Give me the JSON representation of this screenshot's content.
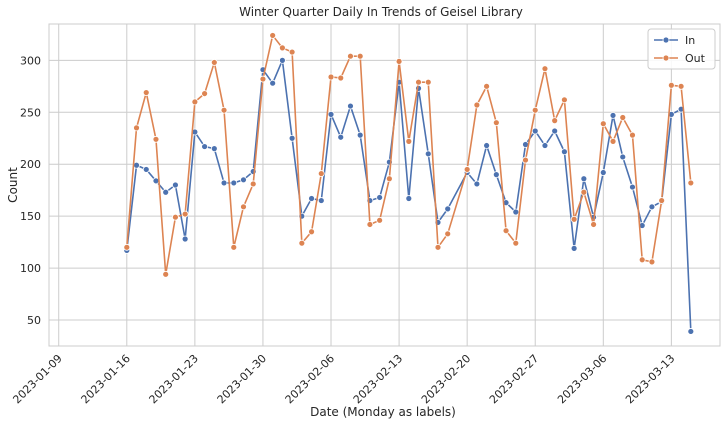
{
  "chart_data": {
    "type": "line",
    "title": "Winter Quarter Daily In Trends of Geisel Library",
    "xlabel": "Date (Monday as labels)",
    "ylabel": "Count",
    "x_tick_labels": [
      "2023-01-09",
      "2023-01-16",
      "2023-01-23",
      "2023-01-30",
      "2023-02-06",
      "2023-02-13",
      "2023-02-20",
      "2023-02-27",
      "2023-03-06",
      "2023-03-13"
    ],
    "x_start": "2023-01-08",
    "x_end": "2023-03-18",
    "ylim": [
      25,
      335
    ],
    "y_ticks": [
      50,
      100,
      150,
      200,
      250,
      300
    ],
    "grid": true,
    "legend_position": "top-right",
    "series": [
      {
        "name": "In",
        "color": "#4c72b0",
        "points": [
          [
            "2023-01-16",
            117
          ],
          [
            "2023-01-17",
            199
          ],
          [
            "2023-01-18",
            195
          ],
          [
            "2023-01-19",
            184
          ],
          [
            "2023-01-20",
            173
          ],
          [
            "2023-01-21",
            180
          ],
          [
            "2023-01-22",
            128
          ],
          [
            "2023-01-23",
            231
          ],
          [
            "2023-01-24",
            217
          ],
          [
            "2023-01-25",
            215
          ],
          [
            "2023-01-26",
            182
          ],
          [
            "2023-01-27",
            182
          ],
          [
            "2023-01-28",
            185
          ],
          [
            "2023-01-29",
            193
          ],
          [
            "2023-01-30",
            291
          ],
          [
            "2023-01-31",
            278
          ],
          [
            "2023-02-01",
            300
          ],
          [
            "2023-02-02",
            225
          ],
          [
            "2023-02-03",
            150
          ],
          [
            "2023-02-04",
            167
          ],
          [
            "2023-02-05",
            165
          ],
          [
            "2023-02-06",
            248
          ],
          [
            "2023-02-07",
            226
          ],
          [
            "2023-02-08",
            256
          ],
          [
            "2023-02-09",
            228
          ],
          [
            "2023-02-10",
            165
          ],
          [
            "2023-02-11",
            168
          ],
          [
            "2023-02-12",
            202
          ],
          [
            "2023-02-13",
            279
          ],
          [
            "2023-02-14",
            167
          ],
          [
            "2023-02-15",
            273
          ],
          [
            "2023-02-16",
            210
          ],
          [
            "2023-02-17",
            144
          ],
          [
            "2023-02-18",
            157
          ],
          [
            "2023-02-20",
            192
          ],
          [
            "2023-02-21",
            181
          ],
          [
            "2023-02-22",
            218
          ],
          [
            "2023-02-23",
            190
          ],
          [
            "2023-02-24",
            163
          ],
          [
            "2023-02-25",
            154
          ],
          [
            "2023-02-26",
            219
          ],
          [
            "2023-02-27",
            232
          ],
          [
            "2023-02-28",
            218
          ],
          [
            "2023-03-01",
            232
          ],
          [
            "2023-03-02",
            212
          ],
          [
            "2023-03-03",
            119
          ],
          [
            "2023-03-04",
            186
          ],
          [
            "2023-03-05",
            149
          ],
          [
            "2023-03-06",
            192
          ],
          [
            "2023-03-07",
            247
          ],
          [
            "2023-03-08",
            207
          ],
          [
            "2023-03-09",
            178
          ],
          [
            "2023-03-10",
            141
          ],
          [
            "2023-03-11",
            159
          ],
          [
            "2023-03-12",
            164
          ],
          [
            "2023-03-13",
            248
          ],
          [
            "2023-03-14",
            253
          ],
          [
            "2023-03-15",
            39
          ]
        ]
      },
      {
        "name": "Out",
        "color": "#dd8452",
        "points": [
          [
            "2023-01-16",
            120
          ],
          [
            "2023-01-17",
            235
          ],
          [
            "2023-01-18",
            269
          ],
          [
            "2023-01-19",
            224
          ],
          [
            "2023-01-20",
            94
          ],
          [
            "2023-01-21",
            149
          ],
          [
            "2023-01-22",
            152
          ],
          [
            "2023-01-23",
            260
          ],
          [
            "2023-01-24",
            268
          ],
          [
            "2023-01-25",
            298
          ],
          [
            "2023-01-26",
            252
          ],
          [
            "2023-01-27",
            120
          ],
          [
            "2023-01-28",
            159
          ],
          [
            "2023-01-29",
            181
          ],
          [
            "2023-01-30",
            282
          ],
          [
            "2023-01-31",
            324
          ],
          [
            "2023-02-01",
            312
          ],
          [
            "2023-02-02",
            308
          ],
          [
            "2023-02-03",
            124
          ],
          [
            "2023-02-04",
            135
          ],
          [
            "2023-02-05",
            191
          ],
          [
            "2023-02-06",
            284
          ],
          [
            "2023-02-07",
            283
          ],
          [
            "2023-02-08",
            304
          ],
          [
            "2023-02-09",
            304
          ],
          [
            "2023-02-10",
            142
          ],
          [
            "2023-02-11",
            146
          ],
          [
            "2023-02-12",
            186
          ],
          [
            "2023-02-13",
            299
          ],
          [
            "2023-02-14",
            222
          ],
          [
            "2023-02-15",
            279
          ],
          [
            "2023-02-16",
            279
          ],
          [
            "2023-02-17",
            120
          ],
          [
            "2023-02-18",
            133
          ],
          [
            "2023-02-20",
            195
          ],
          [
            "2023-02-21",
            257
          ],
          [
            "2023-02-22",
            275
          ],
          [
            "2023-02-23",
            240
          ],
          [
            "2023-02-24",
            136
          ],
          [
            "2023-02-25",
            124
          ],
          [
            "2023-02-26",
            204
          ],
          [
            "2023-02-27",
            252
          ],
          [
            "2023-02-28",
            292
          ],
          [
            "2023-03-01",
            242
          ],
          [
            "2023-03-02",
            262
          ],
          [
            "2023-03-03",
            147
          ],
          [
            "2023-03-04",
            173
          ],
          [
            "2023-03-05",
            142
          ],
          [
            "2023-03-06",
            239
          ],
          [
            "2023-03-07",
            222
          ],
          [
            "2023-03-08",
            245
          ],
          [
            "2023-03-09",
            228
          ],
          [
            "2023-03-10",
            108
          ],
          [
            "2023-03-11",
            106
          ],
          [
            "2023-03-12",
            165
          ],
          [
            "2023-03-13",
            276
          ],
          [
            "2023-03-14",
            275
          ],
          [
            "2023-03-15",
            182
          ]
        ]
      }
    ]
  }
}
